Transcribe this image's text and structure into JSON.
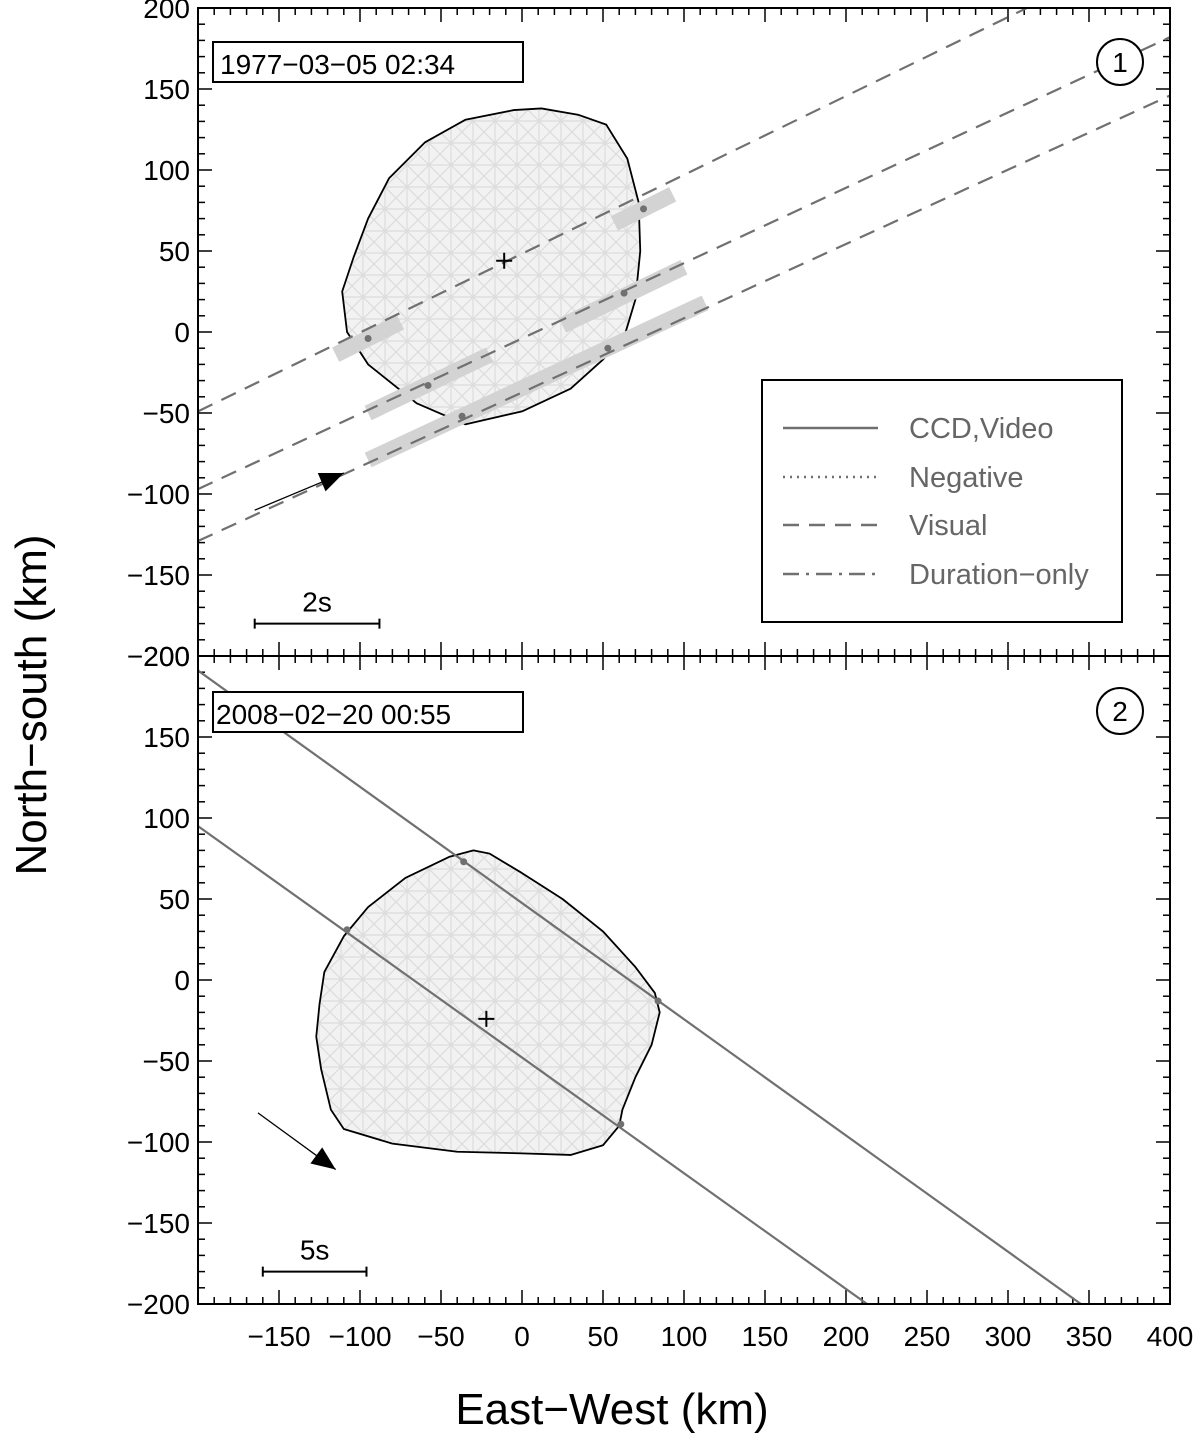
{
  "figure": {
    "xlabel": "East−West (km)",
    "ylabel": "North−south (km)"
  },
  "legend": {
    "items": [
      {
        "label": "CCD,Video",
        "style": "solid"
      },
      {
        "label": "Negative",
        "style": "dotted"
      },
      {
        "label": "Visual",
        "style": "dashed"
      },
      {
        "label": "Duration−only",
        "style": "dashdot"
      }
    ]
  },
  "colors": {
    "chord": "#707070",
    "shape_fill": "#f2f2f2",
    "mesh": "#dcdcdc",
    "uncertainty_bar": "#d3d3d3",
    "outline": "#000000"
  },
  "chart_data": [
    {
      "type": "scatter",
      "panel": "1",
      "date_label": "1977−03−05   02:34",
      "xlim": [
        -200,
        400
      ],
      "ylim": [
        -200,
        200
      ],
      "xticks": [
        -150,
        -100,
        -50,
        0,
        50,
        100,
        150,
        200,
        250,
        300,
        350,
        400
      ],
      "xtick_labels": [
        "−150",
        "−100",
        "−50",
        "0",
        "50",
        "100",
        "150",
        "200",
        "250",
        "300",
        "350",
        "400"
      ],
      "yticks": [
        200,
        150,
        100,
        50,
        0,
        -50,
        -100,
        -150,
        -200
      ],
      "ytick_labels": [
        "200",
        "150",
        "100",
        "50",
        "0",
        "−50",
        "−100",
        "−150",
        "−200"
      ],
      "center": [
        -11,
        44
      ],
      "outline": [
        [
          -111,
          25
        ],
        [
          -104,
          46
        ],
        [
          -95,
          70
        ],
        [
          -82,
          95
        ],
        [
          -60,
          117
        ],
        [
          -35,
          131
        ],
        [
          -5,
          137
        ],
        [
          12,
          138
        ],
        [
          35,
          134
        ],
        [
          52,
          128
        ],
        [
          65,
          107
        ],
        [
          72,
          80
        ],
        [
          73,
          50
        ],
        [
          70,
          20
        ],
        [
          64,
          0
        ],
        [
          50,
          -17
        ],
        [
          30,
          -35
        ],
        [
          0,
          -49
        ],
        [
          -35,
          -57
        ],
        [
          -65,
          -44
        ],
        [
          -95,
          -20
        ],
        [
          -108,
          0
        ]
      ],
      "chords": [
        {
          "style": "dashed",
          "x1": -200,
          "y1": -49,
          "x2": 400,
          "y2": 243,
          "points": [
            [
              -95,
              -4
            ],
            [
              75,
              76
            ]
          ],
          "bars": [
            [
              -115,
              -14,
              -75,
              6
            ],
            [
              57,
              67,
              93,
              85
            ]
          ]
        },
        {
          "style": "dashed",
          "x1": -200,
          "y1": -97,
          "x2": 400,
          "y2": 182,
          "points": [
            [
              -58,
              -33
            ],
            [
              63,
              24
            ]
          ],
          "bars": [
            [
              -95,
              -50,
              -20,
              -14
            ],
            [
              25,
              4,
              100,
              40
            ]
          ]
        },
        {
          "style": "dashed",
          "x1": -200,
          "y1": -129,
          "x2": 400,
          "y2": 146,
          "points": [
            [
              -37,
              -52
            ],
            [
              53,
              -10
            ]
          ],
          "bars": [
            [
              -95,
              -79,
              113,
              18
            ]
          ]
        }
      ],
      "direction_arrow": {
        "from": [
          -165,
          -110
        ],
        "to": [
          -110,
          -87
        ]
      },
      "time_scale": {
        "label": "2s",
        "x1": -165,
        "x2": -88,
        "y": -180
      }
    },
    {
      "type": "scatter",
      "panel": "2",
      "date_label": "2008−02−20   00:55",
      "xlim": [
        -200,
        400
      ],
      "ylim": [
        -200,
        200
      ],
      "xticks": [
        -150,
        -100,
        -50,
        0,
        50,
        100,
        150,
        200,
        250,
        300,
        350,
        400
      ],
      "xtick_labels": [
        "−150",
        "−100",
        "−50",
        "0",
        "50",
        "100",
        "150",
        "200",
        "250",
        "300",
        "350",
        "400"
      ],
      "yticks": [
        200,
        150,
        100,
        50,
        0,
        -50,
        -100,
        -150,
        -200
      ],
      "ytick_labels": [
        "200",
        "150",
        "100",
        "50",
        "0",
        "−50",
        "−100",
        "−150",
        "−200"
      ],
      "center": [
        -22,
        -24
      ],
      "outline": [
        [
          -125,
          -15
        ],
        [
          -122,
          5
        ],
        [
          -110,
          27
        ],
        [
          -95,
          45
        ],
        [
          -72,
          63
        ],
        [
          -45,
          76
        ],
        [
          -30,
          80
        ],
        [
          -20,
          78
        ],
        [
          0,
          66
        ],
        [
          25,
          50
        ],
        [
          50,
          30
        ],
        [
          70,
          8
        ],
        [
          82,
          -8
        ],
        [
          85,
          -20
        ],
        [
          80,
          -40
        ],
        [
          70,
          -60
        ],
        [
          62,
          -80
        ],
        [
          60,
          -90
        ],
        [
          50,
          -102
        ],
        [
          30,
          -108
        ],
        [
          0,
          -107
        ],
        [
          -40,
          -106
        ],
        [
          -80,
          -101
        ],
        [
          -110,
          -92
        ],
        [
          -118,
          -80
        ],
        [
          -124,
          -55
        ],
        [
          -127,
          -35
        ]
      ],
      "chords": [
        {
          "style": "solid",
          "x1": -200,
          "y1": 191,
          "x2": 345,
          "y2": -200,
          "points": [
            [
              -36,
              73
            ],
            [
              84,
              -13
            ]
          ],
          "bars": []
        },
        {
          "style": "solid",
          "x1": -200,
          "y1": 95,
          "x2": 213,
          "y2": -200,
          "points": [
            [
              -108,
              31
            ],
            [
              61,
              -89
            ]
          ],
          "bars": []
        }
      ],
      "direction_arrow": {
        "from": [
          -163,
          -82
        ],
        "to": [
          -115,
          -117
        ]
      },
      "time_scale": {
        "label": "5s",
        "x1": -160,
        "x2": -96,
        "y": -180
      }
    }
  ]
}
